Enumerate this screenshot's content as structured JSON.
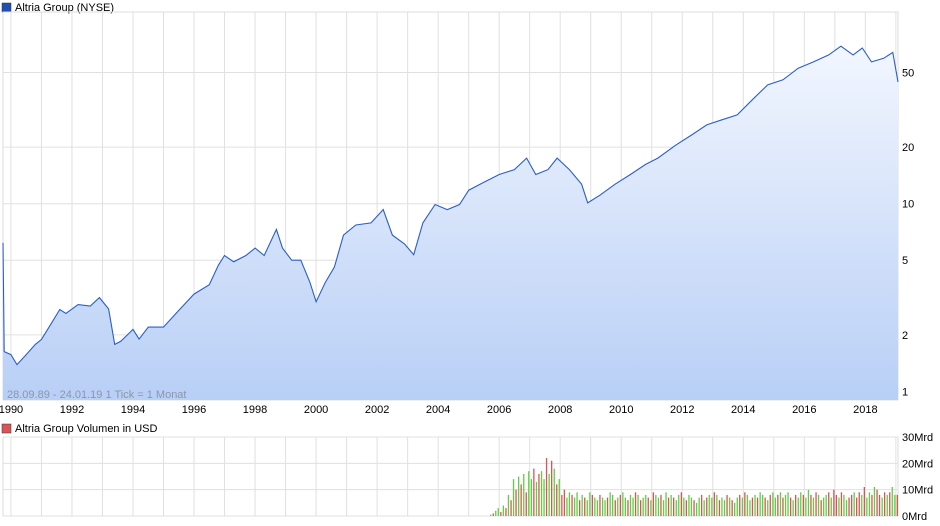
{
  "chart_data": [
    {
      "type": "area",
      "title": "Altria Group (NYSE)",
      "scale": "log",
      "ylim": [
        0.9,
        105
      ],
      "xlim": [
        1989.74,
        2019.07
      ],
      "y_ticks": [
        1,
        2,
        5,
        10,
        20,
        50
      ],
      "y_tick_labels": [
        "1",
        "2",
        "5",
        "10",
        "20",
        "50"
      ],
      "x_ticks": [
        1990,
        1992,
        1994,
        1996,
        1998,
        2000,
        2002,
        2004,
        2006,
        2008,
        2010,
        2012,
        2014,
        2016,
        2018
      ],
      "x_tick_labels": [
        "1990",
        "1992",
        "1994",
        "1996",
        "1998",
        "2000",
        "2002",
        "2004",
        "2006",
        "2008",
        "2010",
        "2012",
        "2014",
        "2016",
        "2018"
      ],
      "annotation": "28.09.89 - 24.01.19   1 Tick = 1 Monat",
      "legend_color": "#1f4fb4",
      "line_color": "#2a5fc9",
      "x": [
        1989.74,
        1989.78,
        1990.0,
        1990.2,
        1990.5,
        1990.8,
        1991.0,
        1991.3,
        1991.6,
        1991.8,
        1992.2,
        1992.6,
        1992.9,
        1993.2,
        1993.4,
        1993.6,
        1994.0,
        1994.2,
        1994.5,
        1995.0,
        1995.5,
        1996.0,
        1996.5,
        1996.8,
        1997.0,
        1997.3,
        1997.7,
        1998.0,
        1998.3,
        1998.7,
        1998.9,
        1999.2,
        1999.5,
        1999.8,
        2000.0,
        2000.3,
        2000.6,
        2000.9,
        2001.3,
        2001.8,
        2002.2,
        2002.5,
        2002.9,
        2003.2,
        2003.5,
        2003.9,
        2004.3,
        2004.7,
        2005.0,
        2005.5,
        2006.0,
        2006.5,
        2006.9,
        2007.2,
        2007.6,
        2007.9,
        2008.3,
        2008.7,
        2008.9,
        2009.3,
        2009.8,
        2010.3,
        2010.8,
        2011.2,
        2011.8,
        2012.3,
        2012.8,
        2013.3,
        2013.8,
        2014.3,
        2014.8,
        2015.3,
        2015.8,
        2016.3,
        2016.8,
        2017.2,
        2017.6,
        2017.9,
        2018.2,
        2018.6,
        2018.9,
        2019.07
      ],
      "values": [
        6.2,
        1.63,
        1.57,
        1.39,
        1.57,
        1.78,
        1.89,
        2.27,
        2.73,
        2.6,
        2.9,
        2.85,
        3.16,
        2.75,
        1.78,
        1.85,
        2.14,
        1.9,
        2.2,
        2.2,
        2.7,
        3.3,
        3.7,
        4.7,
        5.3,
        4.9,
        5.3,
        5.8,
        5.3,
        7.3,
        5.8,
        5.0,
        5.0,
        3.8,
        3.0,
        3.8,
        4.6,
        6.8,
        7.7,
        7.9,
        9.3,
        6.8,
        6.1,
        5.35,
        7.9,
        9.9,
        9.3,
        9.9,
        11.8,
        13.0,
        14.3,
        15.2,
        17.5,
        14.3,
        15.2,
        17.5,
        15.2,
        12.7,
        10.1,
        11.1,
        12.7,
        14.3,
        16.2,
        17.5,
        20.6,
        23.2,
        26.3,
        28.0,
        29.7,
        35.8,
        43.0,
        45.7,
        52.7,
        56.9,
        62.0,
        69.0,
        62.0,
        67.5,
        56.9,
        59.5,
        64.0,
        44.5
      ]
    },
    {
      "type": "bar",
      "title": "Altria Group Volumen in USD",
      "ylim": [
        0,
        30
      ],
      "y_ticks": [
        0,
        10,
        20,
        30
      ],
      "y_tick_labels": [
        "0Mrd",
        "10Mrd",
        "20Mrd",
        "30Mrd"
      ],
      "up_color": "#5ecf3f",
      "down_color": "#d95454",
      "legend_color": "#d95454",
      "x_start": 2005.7,
      "x_step": 0.0833,
      "values": [
        0.5,
        1,
        2,
        3,
        1.5,
        4,
        3,
        8,
        6,
        14,
        10,
        15,
        12,
        16,
        9,
        17,
        14,
        18,
        13,
        16,
        17,
        14,
        22,
        16,
        21,
        18,
        12,
        14,
        8,
        10,
        7,
        9,
        8,
        7,
        9,
        6,
        8,
        7,
        6,
        9,
        8,
        7,
        6,
        8,
        7,
        6,
        7,
        9,
        8,
        6,
        7,
        8,
        9,
        7,
        6,
        8,
        7,
        9,
        8,
        6,
        7,
        8,
        7,
        6,
        9,
        8,
        7,
        8,
        6,
        9,
        7,
        8,
        7,
        6,
        8,
        9,
        7,
        6,
        8,
        7,
        6,
        5,
        7,
        8,
        6,
        7,
        8,
        7,
        9,
        8,
        6,
        7,
        6,
        8,
        7,
        6,
        5,
        7,
        8,
        7,
        9,
        8,
        6,
        7,
        8,
        7,
        9,
        8,
        7,
        6,
        8,
        9,
        7,
        8,
        9,
        7,
        8,
        9,
        7,
        6,
        8,
        7,
        9,
        8,
        7,
        10,
        8,
        7,
        9,
        8,
        6,
        7,
        8,
        9,
        7,
        10,
        8,
        7,
        9,
        8,
        6,
        7,
        8,
        9,
        7,
        9,
        8,
        11,
        7,
        9,
        8,
        11,
        10,
        8,
        7,
        9,
        8,
        9,
        11,
        8,
        8,
        7,
        7,
        10,
        11,
        12,
        3
      ],
      "up": [
        1,
        0,
        1,
        1,
        0,
        1,
        0,
        1,
        0,
        1,
        0,
        1,
        0,
        1,
        0,
        1,
        1,
        0,
        1,
        0,
        1,
        1,
        0,
        1,
        0,
        1,
        0,
        1,
        0,
        0,
        1,
        1,
        0,
        1,
        1,
        0,
        1,
        0,
        1,
        1,
        0,
        1,
        1,
        0,
        1,
        1,
        0,
        1,
        1,
        0,
        1,
        0,
        1,
        1,
        0,
        1,
        1,
        0,
        1,
        0,
        1,
        1,
        0,
        1,
        0,
        1,
        1,
        0,
        1,
        1,
        0,
        1,
        0,
        1,
        1,
        0,
        1,
        0,
        1,
        1,
        0,
        1,
        1,
        0,
        1,
        0,
        1,
        1,
        0,
        1,
        0,
        1,
        1,
        0,
        1,
        0,
        1,
        1,
        0,
        1,
        0,
        1,
        1,
        0,
        1,
        0,
        1,
        1,
        0,
        1,
        0,
        1,
        1,
        0,
        1,
        0,
        1,
        1,
        0,
        1,
        0,
        1,
        1,
        0,
        1,
        1,
        0,
        1,
        0,
        1,
        0,
        1,
        1,
        0,
        1,
        0,
        0,
        1,
        0,
        1,
        1,
        0,
        0,
        1,
        0,
        0,
        1,
        0,
        1,
        1,
        0,
        1,
        0,
        0,
        1,
        0,
        1,
        0,
        1,
        1,
        0,
        0,
        0,
        0,
        0,
        0,
        0
      ]
    }
  ]
}
